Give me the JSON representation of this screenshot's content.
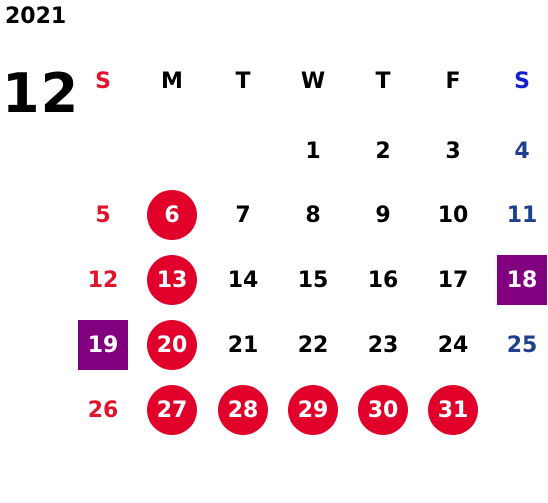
{
  "calendar": {
    "year": "2021",
    "month": "12",
    "weekdays": [
      "S",
      "M",
      "T",
      "W",
      "T",
      "F",
      "S"
    ],
    "weeks": [
      [
        {
          "day": "",
          "style": "normal"
        },
        {
          "day": "",
          "style": "normal"
        },
        {
          "day": "",
          "style": "normal"
        },
        {
          "day": "1",
          "style": "normal"
        },
        {
          "day": "2",
          "style": "normal"
        },
        {
          "day": "3",
          "style": "normal"
        },
        {
          "day": "4",
          "style": "saturday"
        }
      ],
      [
        {
          "day": "5",
          "style": "sunday"
        },
        {
          "day": "6",
          "style": "circle"
        },
        {
          "day": "7",
          "style": "normal"
        },
        {
          "day": "8",
          "style": "normal"
        },
        {
          "day": "9",
          "style": "normal"
        },
        {
          "day": "10",
          "style": "normal"
        },
        {
          "day": "11",
          "style": "saturday"
        }
      ],
      [
        {
          "day": "12",
          "style": "sunday"
        },
        {
          "day": "13",
          "style": "circle"
        },
        {
          "day": "14",
          "style": "normal"
        },
        {
          "day": "15",
          "style": "normal"
        },
        {
          "day": "16",
          "style": "normal"
        },
        {
          "day": "17",
          "style": "normal"
        },
        {
          "day": "18",
          "style": "square"
        }
      ],
      [
        {
          "day": "19",
          "style": "square"
        },
        {
          "day": "20",
          "style": "circle"
        },
        {
          "day": "21",
          "style": "normal"
        },
        {
          "day": "22",
          "style": "normal"
        },
        {
          "day": "23",
          "style": "normal"
        },
        {
          "day": "24",
          "style": "normal"
        },
        {
          "day": "25",
          "style": "saturday"
        }
      ],
      [
        {
          "day": "26",
          "style": "sunday"
        },
        {
          "day": "27",
          "style": "circle"
        },
        {
          "day": "28",
          "style": "circle"
        },
        {
          "day": "29",
          "style": "circle"
        },
        {
          "day": "30",
          "style": "circle"
        },
        {
          "day": "31",
          "style": "circle"
        },
        {
          "day": "",
          "style": "normal"
        }
      ]
    ]
  },
  "colors": {
    "sunday_text": "#e0142a",
    "saturday_text": "#1f3f8f",
    "circle_marker": "#e0002a",
    "square_marker": "#800080"
  }
}
